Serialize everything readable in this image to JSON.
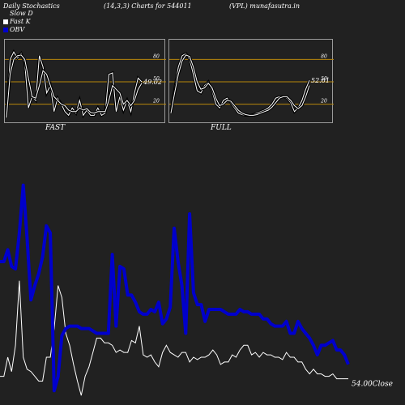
{
  "header": {
    "title": "Daily Stochastics",
    "params": "(14,3,3) Charts for 544011",
    "symbol": "(VPL) munafasutra.in"
  },
  "legend": [
    {
      "label": "Slow  D",
      "color": "#ffffff"
    },
    {
      "label": "Fast K",
      "color": "#ffffff"
    },
    {
      "label": "OBV",
      "color": "#0000cc"
    }
  ],
  "colors": {
    "background": "#212121",
    "panel_border": "#9a9a9a",
    "band_line": "#b8860b",
    "obv": "#0000cc",
    "close": "#ffffff",
    "stoch": "#ffffff"
  },
  "chart_data": [
    {
      "type": "line",
      "title": "FAST",
      "ylim": [
        0,
        100
      ],
      "yticks": [
        20,
        50,
        80
      ],
      "bands": [
        20,
        50,
        80
      ],
      "last_value_label": "49.02",
      "series": [
        {
          "name": "Fast K",
          "values": [
            2,
            80,
            90,
            82,
            88,
            75,
            15,
            30,
            25,
            85,
            70,
            35,
            45,
            10,
            28,
            20,
            10,
            5,
            15,
            8,
            25,
            5,
            12,
            5,
            5,
            15,
            5,
            8,
            60,
            62,
            10,
            30,
            12,
            25,
            10,
            35,
            55,
            50
          ]
        },
        {
          "name": "Slow  D",
          "values": [
            2,
            60,
            80,
            85,
            86,
            80,
            55,
            30,
            28,
            45,
            65,
            60,
            45,
            30,
            25,
            20,
            18,
            12,
            10,
            10,
            15,
            12,
            14,
            9,
            8,
            10,
            10,
            10,
            25,
            45,
            40,
            35,
            20,
            25,
            18,
            25,
            40,
            48
          ]
        }
      ]
    },
    {
      "type": "line",
      "title": "FULL",
      "ylim": [
        0,
        100
      ],
      "yticks": [
        20,
        50,
        80
      ],
      "bands": [
        20,
        50,
        80
      ],
      "last_value_label": "52.61",
      "series": [
        {
          "name": "Fast K",
          "values": [
            10,
            40,
            70,
            85,
            88,
            80,
            60,
            38,
            35,
            45,
            50,
            38,
            20,
            15,
            25,
            28,
            22,
            15,
            8,
            6,
            5,
            5,
            6,
            8,
            10,
            12,
            15,
            20,
            28,
            30,
            30,
            28,
            22,
            10,
            15,
            25,
            40,
            52
          ]
        },
        {
          "name": "Slow  D",
          "values": [
            8,
            35,
            60,
            78,
            86,
            84,
            70,
            50,
            40,
            42,
            48,
            42,
            28,
            18,
            20,
            25,
            24,
            18,
            12,
            8,
            6,
            5,
            5,
            6,
            8,
            10,
            12,
            16,
            22,
            28,
            30,
            30,
            25,
            18,
            14,
            18,
            30,
            45
          ]
        }
      ]
    },
    {
      "type": "line",
      "last_value_label": "54.00Close",
      "series": [
        {
          "name": "OBV",
          "values": [
            60,
            60,
            65,
            58,
            57,
            72,
            92,
            70,
            44,
            50,
            55,
            62,
            75,
            72,
            6,
            12,
            29,
            32,
            33,
            33,
            33,
            32,
            32,
            32,
            31,
            30,
            30,
            30,
            30,
            63,
            33,
            58,
            57,
            46,
            46,
            43,
            39,
            38,
            38,
            40,
            39,
            43,
            34,
            36,
            41,
            74,
            60,
            50,
            30,
            80,
            47,
            42,
            42,
            35,
            40,
            40,
            40,
            40,
            39,
            38,
            38,
            38,
            40,
            39,
            39,
            38,
            38,
            38,
            36,
            36,
            34,
            33,
            33,
            33,
            35,
            30,
            30,
            35,
            32,
            30,
            28,
            25,
            21,
            25,
            25,
            26,
            27,
            23,
            23,
            21,
            17
          ]
        },
        {
          "name": "Close",
          "values": [
            12,
            12,
            20,
            14,
            25,
            52,
            20,
            15,
            14,
            12,
            10,
            10,
            20,
            20,
            32,
            50,
            45,
            30,
            25,
            17,
            10,
            4,
            12,
            16,
            22,
            28,
            28,
            26,
            26,
            25,
            22,
            23,
            22,
            22,
            27,
            26,
            33,
            21,
            20,
            21,
            18,
            16,
            22,
            25,
            22,
            21,
            20,
            22,
            22,
            18,
            20,
            19,
            20,
            20,
            21,
            23,
            21,
            17,
            18,
            18,
            21,
            20,
            23,
            25,
            25,
            21,
            22,
            20,
            22,
            21,
            21,
            20,
            20,
            19,
            22,
            20,
            20,
            18,
            18,
            15,
            13,
            15,
            13,
            13,
            12,
            12,
            13,
            11,
            11,
            11,
            11
          ]
        }
      ]
    }
  ]
}
